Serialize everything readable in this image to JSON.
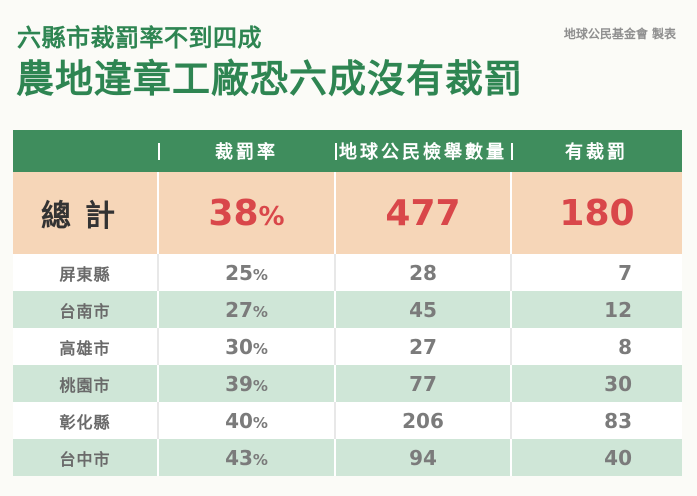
{
  "header": {
    "subtitle": "六縣市裁罰率不到四成",
    "title": "農地違章工廠恐六成沒有裁罰",
    "credit": "地球公民基金會 製表"
  },
  "table": {
    "columns": [
      "",
      "裁罰率",
      "地球公民檢舉數量",
      "有裁罰"
    ],
    "total": {
      "label": "總計",
      "rate": "38",
      "reports": "477",
      "penalized": "180"
    },
    "rows": [
      {
        "county": "屏東縣",
        "rate": "25",
        "reports": "28",
        "penalized": "7"
      },
      {
        "county": "台南市",
        "rate": "27",
        "reports": "45",
        "penalized": "12"
      },
      {
        "county": "高雄市",
        "rate": "30",
        "reports": "27",
        "penalized": "8"
      },
      {
        "county": "桃園市",
        "rate": "39",
        "reports": "77",
        "penalized": "30"
      },
      {
        "county": "彰化縣",
        "rate": "40",
        "reports": "206",
        "penalized": "83"
      },
      {
        "county": "台中市",
        "rate": "43",
        "reports": "94",
        "penalized": "40"
      }
    ],
    "percent_sign": "%"
  },
  "colors": {
    "title_green": "#2e8552",
    "header_green": "#3f8d5d",
    "total_bg": "#f6d6b8",
    "total_red": "#d9474a",
    "stripe_green": "#cfe6d7"
  }
}
